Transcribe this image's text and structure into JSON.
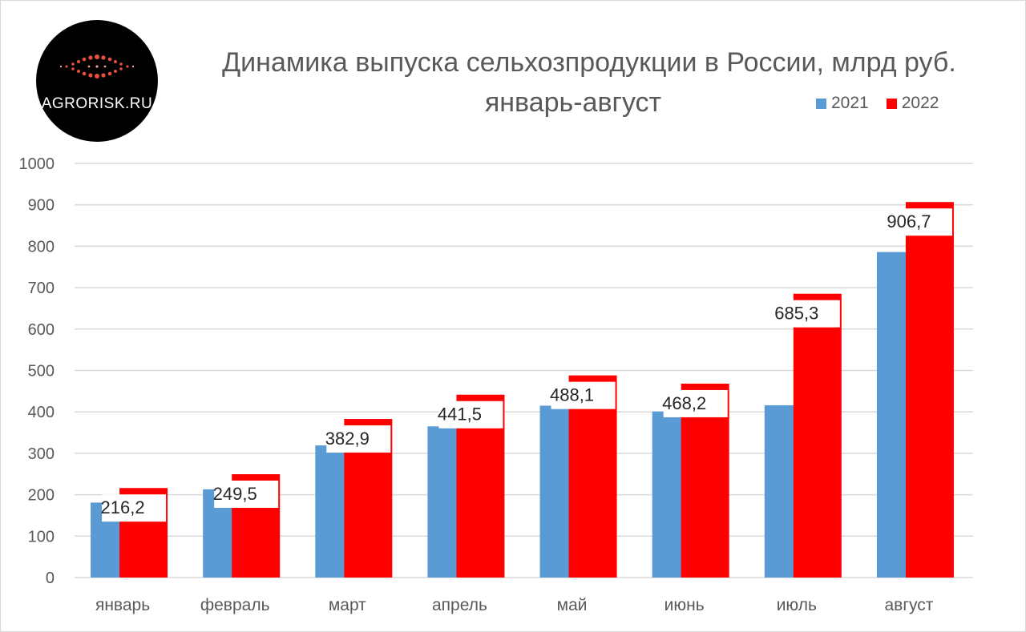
{
  "logo": {
    "text": "AGRORISK.RU"
  },
  "chart_data": {
    "type": "bar",
    "title": "Динамика выпуска сельхозпродукции в России, млрд руб.",
    "subtitle": "январь-август",
    "categories": [
      "январь",
      "февраль",
      "март",
      "апрель",
      "май",
      "июнь",
      "июль",
      "август"
    ],
    "series": [
      {
        "name": "2021",
        "color": "#5b9bd5",
        "values": [
          181,
          213,
          319,
          365,
          415,
          401,
          416,
          786
        ]
      },
      {
        "name": "2022",
        "color": "#ff0000",
        "values": [
          216.2,
          249.5,
          382.9,
          441.5,
          488.1,
          468.2,
          685.3,
          906.7
        ]
      }
    ],
    "data_labels": [
      "216,2",
      "249,5",
      "382,9",
      "441,5",
      "488,1",
      "468,2",
      "685,3",
      "906,7"
    ],
    "ylim": [
      0,
      1000
    ],
    "yticks": [
      "0",
      "100",
      "200",
      "300",
      "400",
      "500",
      "600",
      "700",
      "800",
      "900",
      "1000"
    ],
    "grid": true,
    "legend_position": "top-right"
  }
}
